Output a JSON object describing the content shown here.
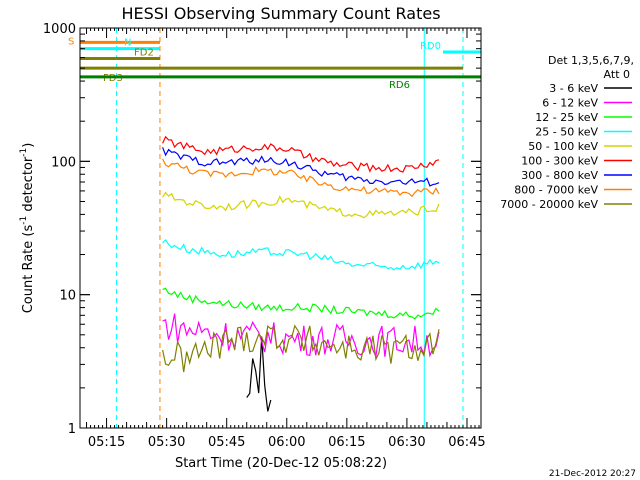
{
  "chart_data": {
    "type": "line",
    "title": "HESSI Observing Summary Count Rates",
    "xlabel": "Start Time (20-Dec-12 05:08:22)",
    "ylabel": "Count Rate (s⁻¹ detector⁻¹)",
    "ylabel_main": "Count Rate (s",
    "ylabel_sup1": "-1",
    "ylabel_mid": " detector",
    "ylabel_sup2": "-1",
    "ylabel_end": ")",
    "yscale": "log",
    "ylim": [
      1,
      1000
    ],
    "xlim": [
      "05:08:22",
      "06:48:30"
    ],
    "x_ticks": [
      "05:15",
      "05:30",
      "05:45",
      "06:00",
      "06:15",
      "06:30",
      "06:45"
    ],
    "y_ticks": [
      "1",
      "10",
      "100",
      "1000"
    ],
    "timestamp": "21-Dec-2012 20:27",
    "legend": {
      "placement": "right",
      "header1": "Det 1,3,5,6,7,9,",
      "header2": "Att 0",
      "entries": [
        {
          "label": "3 - 6 keV",
          "color": "#000000"
        },
        {
          "label": "6 - 12 keV",
          "color": "#ff00ff"
        },
        {
          "label": "12 - 25 keV",
          "color": "#00ff00"
        },
        {
          "label": "25 - 50 keV",
          "color": "#00ffff"
        },
        {
          "label": "50 - 100 keV",
          "color": "#d4d400"
        },
        {
          "label": "100 - 300 keV",
          "color": "#ff0000"
        },
        {
          "label": "300 - 800 keV",
          "color": "#0000ff"
        },
        {
          "label": "800 - 7000 keV",
          "color": "#ff8000"
        },
        {
          "label": "7000 - 20000 keV",
          "color": "#808000"
        }
      ]
    },
    "flags": [
      {
        "label": "S",
        "color": "#ff8000",
        "value": 780,
        "x_end": "05:28:20"
      },
      {
        "label": "N",
        "color": "#00ffff",
        "value": 700,
        "x_end": "05:28:20"
      },
      {
        "label": "FD2",
        "color": "#808000",
        "value": 590,
        "x_end": "05:28:20"
      },
      {
        "label": "FD3",
        "color": "#808000",
        "value": 500,
        "x_end": "06:44:00"
      },
      {
        "label": "RD6",
        "color": "#008000",
        "value": 430,
        "x_end": "06:48:30"
      },
      {
        "label": "RD0",
        "color": "#00ffff",
        "value": 660,
        "x_start": "06:39:00",
        "x_end": "06:48:30"
      }
    ],
    "vertical_markers": [
      {
        "x": "05:08:22",
        "color": "#00c000",
        "style": "solid"
      },
      {
        "x": "05:17:30",
        "color": "#00ffff",
        "style": "dashed"
      },
      {
        "x": "05:28:20",
        "color": "#ff8000",
        "style": "dashed"
      },
      {
        "x": "06:34:20",
        "color": "#00ffff",
        "style": "solid"
      },
      {
        "x": "06:44:00",
        "color": "#00ffff",
        "style": "dashed"
      }
    ],
    "series": [
      {
        "name": "3 - 6 keV",
        "color": "#000000",
        "x": [
          "05:50:00",
          "05:52:00",
          "05:54:00",
          "05:56:00"
        ],
        "values": [
          1.3,
          2.5,
          3.2,
          1.8
        ]
      },
      {
        "name": "6 - 12 keV",
        "color": "#ff00ff",
        "x": [
          "05:29:00",
          "05:35:00",
          "05:45:00",
          "05:55:00",
          "06:05:00",
          "06:15:00",
          "06:25:00",
          "06:32:00",
          "06:38:00"
        ],
        "values": [
          6.0,
          5.5,
          5.0,
          4.8,
          4.6,
          4.6,
          4.5,
          4.5,
          4.5
        ]
      },
      {
        "name": "12 - 25 keV",
        "color": "#00ff00",
        "x": [
          "05:29:00",
          "05:35:00",
          "05:45:00",
          "05:55:00",
          "06:05:00",
          "06:15:00",
          "06:25:00",
          "06:32:00",
          "06:38:00"
        ],
        "values": [
          11.0,
          9.5,
          8.5,
          8.0,
          8.0,
          7.5,
          7.2,
          7.0,
          7.5
        ]
      },
      {
        "name": "25 - 50 keV",
        "color": "#00ffff",
        "x": [
          "05:29:00",
          "05:35:00",
          "05:45:00",
          "05:55:00",
          "06:05:00",
          "06:15:00",
          "06:25:00",
          "06:32:00",
          "06:38:00"
        ],
        "values": [
          25.0,
          22.0,
          20.0,
          21.0,
          20.0,
          17.0,
          16.0,
          16.5,
          18.0
        ]
      },
      {
        "name": "50 - 100 keV",
        "color": "#d4d400",
        "x": [
          "05:29:00",
          "05:35:00",
          "05:40:00",
          "05:45:00",
          "05:52:00",
          "06:00:00",
          "06:05:00",
          "06:12:00",
          "06:20:00",
          "06:30:00",
          "06:38:00"
        ],
        "values": [
          56.0,
          50.0,
          46.0,
          46.0,
          48.0,
          52.0,
          47.0,
          42.0,
          40.0,
          41.0,
          45.0
        ]
      },
      {
        "name": "100 - 300 keV",
        "color": "#ff0000",
        "x": [
          "05:29:00",
          "05:35:00",
          "05:40:00",
          "05:45:00",
          "05:52:00",
          "06:00:00",
          "06:05:00",
          "06:12:00",
          "06:20:00",
          "06:30:00",
          "06:38:00"
        ],
        "values": [
          145.0,
          128.0,
          118.0,
          122.0,
          128.0,
          125.0,
          108.0,
          95.0,
          90.0,
          88.0,
          100.0
        ]
      },
      {
        "name": "300 - 800 keV",
        "color": "#0000ff",
        "x": [
          "05:29:00",
          "05:35:00",
          "05:40:00",
          "05:45:00",
          "05:52:00",
          "06:00:00",
          "06:05:00",
          "06:12:00",
          "06:20:00",
          "06:30:00",
          "06:38:00"
        ],
        "values": [
          120.0,
          105.0,
          98.0,
          98.0,
          102.0,
          100.0,
          88.0,
          78.0,
          72.0,
          70.0,
          70.0
        ]
      },
      {
        "name": "800 - 7000 keV",
        "color": "#ff8000",
        "x": [
          "05:29:00",
          "05:35:00",
          "05:40:00",
          "05:45:00",
          "05:52:00",
          "06:00:00",
          "06:05:00",
          "06:12:00",
          "06:20:00",
          "06:30:00",
          "06:38:00"
        ],
        "values": [
          100.0,
          88.0,
          80.0,
          80.0,
          85.0,
          83.0,
          73.0,
          65.0,
          60.0,
          58.0,
          60.0
        ]
      },
      {
        "name": "7000 - 20000 keV",
        "color": "#808000",
        "x": [
          "05:29:00",
          "05:35:00",
          "05:45:00",
          "05:55:00",
          "06:05:00",
          "06:15:00",
          "06:25:00",
          "06:32:00",
          "06:38:00"
        ],
        "values": [
          3.5,
          3.3,
          4.5,
          5.0,
          4.5,
          4.0,
          3.8,
          4.0,
          4.5
        ]
      }
    ]
  }
}
